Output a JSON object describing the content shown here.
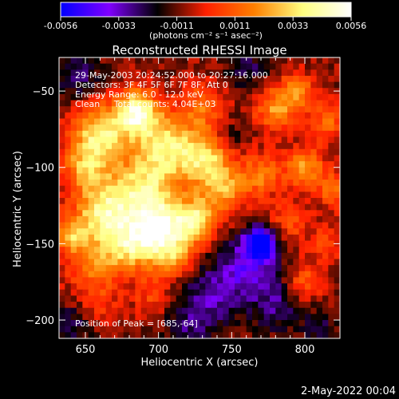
{
  "colorbar": {
    "ticks": [
      "-0.0056",
      "-0.0033",
      "-0.0011",
      "0.0011",
      "0.0033",
      "0.0056"
    ],
    "unit_label": "(photons cm⁻² s⁻¹ asec⁻²)",
    "range": [
      -0.0056,
      0.0056
    ],
    "colormap": [
      "#0000ff",
      "#8000ff",
      "#000000",
      "#ff2000",
      "#ff8000",
      "#ffff80",
      "#ffffff"
    ]
  },
  "chart_data": {
    "type": "heatmap",
    "title": "Reconstructed RHESSI Image",
    "xlabel": "Heliocentric X (arcsec)",
    "ylabel": "Heliocentric Y (arcsec)",
    "xlim": [
      632,
      824
    ],
    "ylim": [
      -212,
      -28
    ],
    "xticks": [
      650,
      700,
      750,
      800
    ],
    "yticks": [
      -50,
      -100,
      -150,
      -200
    ],
    "annotations": [
      "29-May-2003 20:24:52.000 to 20:27:16.000",
      "Detectors: 3F 4F 5F 6F 7F 8F, Att 0",
      "Energy Range: 6.0 - 12.0 keV",
      "Clean     Total counts: 4.04E+03"
    ],
    "peak_label": "Position of Peak = [685,-64]",
    "peak": [
      685,
      -64
    ],
    "blobs": [
      {
        "x": 685,
        "y": -64,
        "v": 0.0056,
        "s": 10
      },
      {
        "x": 660,
        "y": -78,
        "v": 0.0045,
        "s": 13
      },
      {
        "x": 705,
        "y": -85,
        "v": 0.0042,
        "s": 14
      },
      {
        "x": 732,
        "y": -95,
        "v": 0.004,
        "s": 12
      },
      {
        "x": 745,
        "y": -115,
        "v": 0.003,
        "s": 11
      },
      {
        "x": 690,
        "y": -115,
        "v": 0.0042,
        "s": 16
      },
      {
        "x": 662,
        "y": -130,
        "v": 0.0045,
        "s": 14
      },
      {
        "x": 700,
        "y": -140,
        "v": 0.005,
        "s": 12
      },
      {
        "x": 725,
        "y": -135,
        "v": 0.0046,
        "s": 10
      },
      {
        "x": 680,
        "y": -152,
        "v": 0.0038,
        "s": 12
      },
      {
        "x": 710,
        "y": -158,
        "v": 0.003,
        "s": 10
      },
      {
        "x": 655,
        "y": -165,
        "v": 0.0025,
        "s": 12
      },
      {
        "x": 650,
        "y": -100,
        "v": 0.003,
        "s": 11
      },
      {
        "x": 730,
        "y": -60,
        "v": 0.0025,
        "s": 10
      },
      {
        "x": 780,
        "y": -62,
        "v": 0.003,
        "s": 10
      },
      {
        "x": 795,
        "y": -50,
        "v": 0.0028,
        "s": 8
      },
      {
        "x": 815,
        "y": -70,
        "v": 0.0022,
        "s": 9
      },
      {
        "x": 770,
        "y": -105,
        "v": 0.0025,
        "s": 10
      },
      {
        "x": 800,
        "y": -100,
        "v": 0.0032,
        "s": 9
      },
      {
        "x": 820,
        "y": -115,
        "v": 0.0024,
        "s": 8
      },
      {
        "x": 790,
        "y": -135,
        "v": 0.0018,
        "s": 9
      },
      {
        "x": 815,
        "y": -150,
        "v": 0.0016,
        "s": 8
      },
      {
        "x": 800,
        "y": -175,
        "v": 0.002,
        "s": 9
      },
      {
        "x": 660,
        "y": -190,
        "v": 0.0012,
        "s": 9
      },
      {
        "x": 695,
        "y": -185,
        "v": 0.0014,
        "s": 9
      },
      {
        "x": 640,
        "y": -145,
        "v": 0.003,
        "s": 8
      },
      {
        "x": 770,
        "y": -150,
        "v": -0.0056,
        "s": 7
      },
      {
        "x": 760,
        "y": -165,
        "v": -0.0028,
        "s": 14
      },
      {
        "x": 735,
        "y": -185,
        "v": -0.002,
        "s": 14
      },
      {
        "x": 780,
        "y": -190,
        "v": -0.0018,
        "s": 12
      },
      {
        "x": 645,
        "y": -40,
        "v": -0.0018,
        "s": 10
      },
      {
        "x": 760,
        "y": -35,
        "v": -0.0015,
        "s": 10
      },
      {
        "x": 640,
        "y": -205,
        "v": -0.0016,
        "s": 10
      },
      {
        "x": 720,
        "y": -205,
        "v": -0.0014,
        "s": 12
      },
      {
        "x": 810,
        "y": -205,
        "v": -0.0012,
        "s": 10
      },
      {
        "x": 750,
        "y": -80,
        "v": -0.001,
        "s": 8
      }
    ]
  },
  "footer": {
    "date": "2-May-2022 00:04"
  }
}
